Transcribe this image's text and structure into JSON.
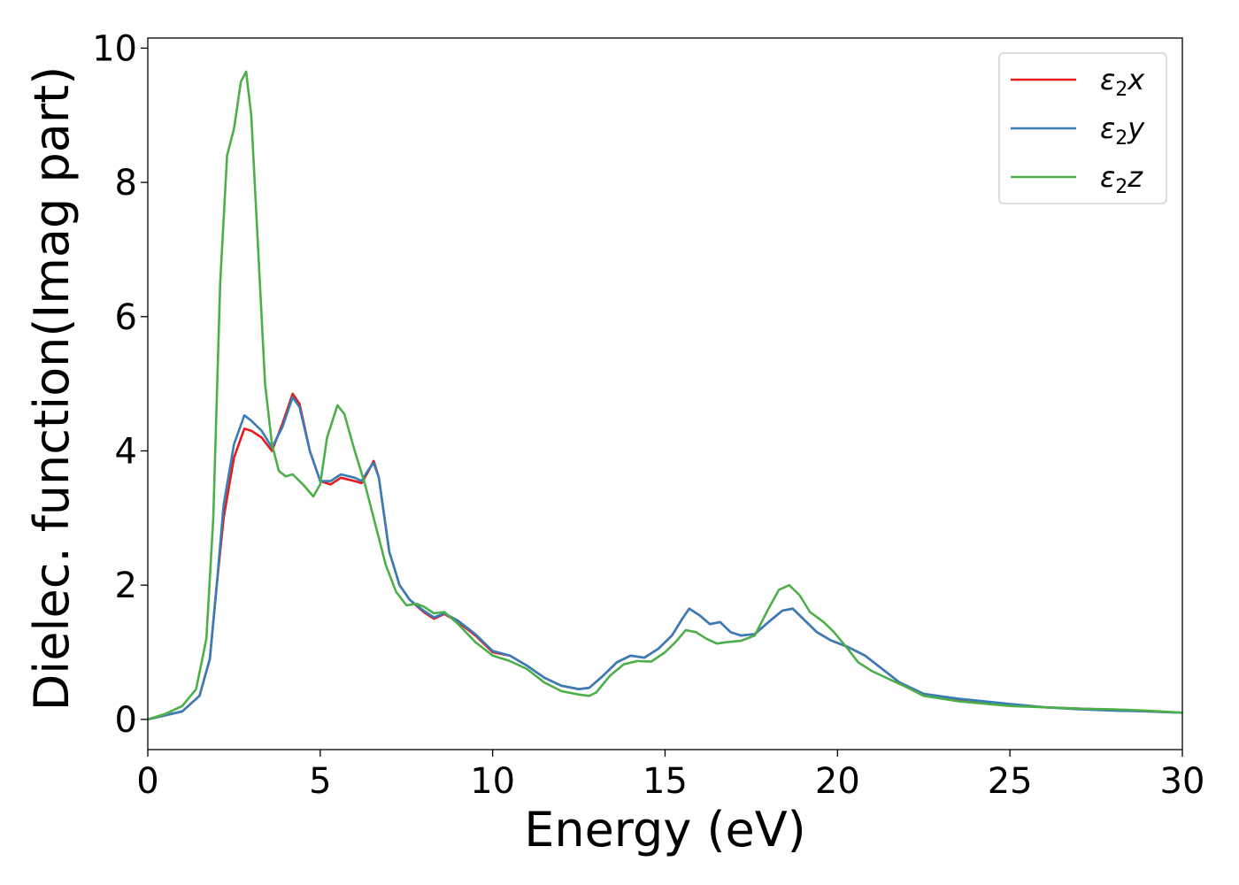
{
  "chart_data": {
    "type": "line",
    "xlabel": "Energy (eV)",
    "ylabel": "Dielec. function(Imag part)",
    "xlim": [
      0,
      30
    ],
    "ylim": [
      -0.45,
      10.15
    ],
    "xticks": [
      "0",
      "5",
      "10",
      "15",
      "20",
      "25",
      "30"
    ],
    "yticks": [
      "0",
      "2",
      "4",
      "6",
      "8",
      "10"
    ],
    "grid": false,
    "legend_position": "top-right",
    "series": [
      {
        "name": "ε₂x",
        "legend": {
          "base": "ε",
          "sub": "2",
          "var": "x"
        },
        "color": "#e41a1c",
        "points": [
          [
            0,
            0
          ],
          [
            0.5,
            0.06
          ],
          [
            1.0,
            0.12
          ],
          [
            1.5,
            0.35
          ],
          [
            1.8,
            0.9
          ],
          [
            2.0,
            2.0
          ],
          [
            2.2,
            3.0
          ],
          [
            2.5,
            3.9
          ],
          [
            2.8,
            4.33
          ],
          [
            3.0,
            4.3
          ],
          [
            3.3,
            4.2
          ],
          [
            3.6,
            4.0
          ],
          [
            3.9,
            4.4
          ],
          [
            4.2,
            4.85
          ],
          [
            4.4,
            4.7
          ],
          [
            4.7,
            4.0
          ],
          [
            5.0,
            3.55
          ],
          [
            5.3,
            3.5
          ],
          [
            5.6,
            3.6
          ],
          [
            6.0,
            3.55
          ],
          [
            6.2,
            3.52
          ],
          [
            6.4,
            3.7
          ],
          [
            6.55,
            3.85
          ],
          [
            6.7,
            3.6
          ],
          [
            7.0,
            2.5
          ],
          [
            7.3,
            2.0
          ],
          [
            7.6,
            1.78
          ],
          [
            8.0,
            1.6
          ],
          [
            8.3,
            1.5
          ],
          [
            8.6,
            1.57
          ],
          [
            9.0,
            1.45
          ],
          [
            9.5,
            1.25
          ],
          [
            10.0,
            1.0
          ],
          [
            10.5,
            0.95
          ],
          [
            11.0,
            0.8
          ],
          [
            11.5,
            0.62
          ],
          [
            12.0,
            0.5
          ],
          [
            12.5,
            0.45
          ],
          [
            12.8,
            0.47
          ],
          [
            13.2,
            0.65
          ],
          [
            13.6,
            0.85
          ],
          [
            14.0,
            0.95
          ],
          [
            14.4,
            0.92
          ],
          [
            14.8,
            1.05
          ],
          [
            15.2,
            1.25
          ],
          [
            15.5,
            1.5
          ],
          [
            15.7,
            1.65
          ],
          [
            16.0,
            1.55
          ],
          [
            16.3,
            1.42
          ],
          [
            16.6,
            1.45
          ],
          [
            16.9,
            1.3
          ],
          [
            17.2,
            1.25
          ],
          [
            17.6,
            1.27
          ],
          [
            18.0,
            1.45
          ],
          [
            18.4,
            1.62
          ],
          [
            18.7,
            1.65
          ],
          [
            19.0,
            1.5
          ],
          [
            19.4,
            1.3
          ],
          [
            19.8,
            1.18
          ],
          [
            20.3,
            1.08
          ],
          [
            20.8,
            0.95
          ],
          [
            21.3,
            0.75
          ],
          [
            21.8,
            0.55
          ],
          [
            22.5,
            0.38
          ],
          [
            23.5,
            0.3
          ],
          [
            25,
            0.22
          ],
          [
            26,
            0.18
          ],
          [
            27,
            0.16
          ],
          [
            28,
            0.14
          ],
          [
            29,
            0.12
          ],
          [
            30,
            0.1
          ]
        ]
      },
      {
        "name": "ε₂y",
        "legend": {
          "base": "ε",
          "sub": "2",
          "var": "y"
        },
        "color": "#377eb8",
        "points": [
          [
            0,
            0
          ],
          [
            0.5,
            0.06
          ],
          [
            1.0,
            0.12
          ],
          [
            1.5,
            0.35
          ],
          [
            1.8,
            0.9
          ],
          [
            2.0,
            2.0
          ],
          [
            2.2,
            3.2
          ],
          [
            2.5,
            4.1
          ],
          [
            2.8,
            4.53
          ],
          [
            3.0,
            4.45
          ],
          [
            3.3,
            4.3
          ],
          [
            3.6,
            4.05
          ],
          [
            3.9,
            4.35
          ],
          [
            4.2,
            4.8
          ],
          [
            4.4,
            4.65
          ],
          [
            4.7,
            4.0
          ],
          [
            5.0,
            3.55
          ],
          [
            5.3,
            3.55
          ],
          [
            5.6,
            3.65
          ],
          [
            6.0,
            3.6
          ],
          [
            6.2,
            3.55
          ],
          [
            6.4,
            3.72
          ],
          [
            6.55,
            3.82
          ],
          [
            6.7,
            3.6
          ],
          [
            7.0,
            2.5
          ],
          [
            7.3,
            2.0
          ],
          [
            7.6,
            1.78
          ],
          [
            8.0,
            1.62
          ],
          [
            8.3,
            1.52
          ],
          [
            8.6,
            1.58
          ],
          [
            9.0,
            1.47
          ],
          [
            9.5,
            1.27
          ],
          [
            10.0,
            1.02
          ],
          [
            10.5,
            0.95
          ],
          [
            11.0,
            0.8
          ],
          [
            11.5,
            0.62
          ],
          [
            12.0,
            0.5
          ],
          [
            12.5,
            0.45
          ],
          [
            12.8,
            0.47
          ],
          [
            13.2,
            0.65
          ],
          [
            13.6,
            0.85
          ],
          [
            14.0,
            0.95
          ],
          [
            14.4,
            0.92
          ],
          [
            14.8,
            1.05
          ],
          [
            15.2,
            1.25
          ],
          [
            15.5,
            1.5
          ],
          [
            15.7,
            1.65
          ],
          [
            16.0,
            1.55
          ],
          [
            16.3,
            1.42
          ],
          [
            16.6,
            1.45
          ],
          [
            16.9,
            1.3
          ],
          [
            17.2,
            1.25
          ],
          [
            17.6,
            1.27
          ],
          [
            18.0,
            1.45
          ],
          [
            18.4,
            1.62
          ],
          [
            18.7,
            1.65
          ],
          [
            19.0,
            1.5
          ],
          [
            19.4,
            1.3
          ],
          [
            19.8,
            1.18
          ],
          [
            20.3,
            1.08
          ],
          [
            20.8,
            0.95
          ],
          [
            21.3,
            0.75
          ],
          [
            21.8,
            0.55
          ],
          [
            22.5,
            0.38
          ],
          [
            23.5,
            0.31
          ],
          [
            25,
            0.23
          ],
          [
            26,
            0.18
          ],
          [
            27,
            0.15
          ],
          [
            28,
            0.13
          ],
          [
            29,
            0.12
          ],
          [
            30,
            0.1
          ]
        ]
      },
      {
        "name": "ε₂z",
        "legend": {
          "base": "ε",
          "sub": "2",
          "var": "z"
        },
        "color": "#4daf4a",
        "points": [
          [
            0,
            0
          ],
          [
            0.5,
            0.08
          ],
          [
            1.0,
            0.2
          ],
          [
            1.4,
            0.45
          ],
          [
            1.7,
            1.2
          ],
          [
            1.9,
            3.0
          ],
          [
            2.1,
            6.5
          ],
          [
            2.3,
            8.4
          ],
          [
            2.5,
            8.8
          ],
          [
            2.7,
            9.5
          ],
          [
            2.85,
            9.65
          ],
          [
            3.0,
            9.0
          ],
          [
            3.2,
            7.0
          ],
          [
            3.4,
            5.0
          ],
          [
            3.6,
            4.1
          ],
          [
            3.8,
            3.7
          ],
          [
            4.0,
            3.62
          ],
          [
            4.2,
            3.65
          ],
          [
            4.5,
            3.5
          ],
          [
            4.8,
            3.32
          ],
          [
            5.0,
            3.5
          ],
          [
            5.2,
            4.2
          ],
          [
            5.5,
            4.68
          ],
          [
            5.7,
            4.55
          ],
          [
            6.0,
            4.0
          ],
          [
            6.3,
            3.5
          ],
          [
            6.6,
            2.9
          ],
          [
            6.9,
            2.3
          ],
          [
            7.2,
            1.9
          ],
          [
            7.5,
            1.7
          ],
          [
            7.8,
            1.72
          ],
          [
            8.0,
            1.68
          ],
          [
            8.3,
            1.58
          ],
          [
            8.6,
            1.6
          ],
          [
            9.0,
            1.42
          ],
          [
            9.5,
            1.15
          ],
          [
            10.0,
            0.95
          ],
          [
            10.5,
            0.87
          ],
          [
            11.0,
            0.75
          ],
          [
            11.5,
            0.55
          ],
          [
            12.0,
            0.42
          ],
          [
            12.5,
            0.37
          ],
          [
            12.8,
            0.35
          ],
          [
            13.0,
            0.4
          ],
          [
            13.4,
            0.65
          ],
          [
            13.8,
            0.82
          ],
          [
            14.2,
            0.87
          ],
          [
            14.6,
            0.86
          ],
          [
            15.0,
            1.0
          ],
          [
            15.3,
            1.15
          ],
          [
            15.6,
            1.33
          ],
          [
            15.9,
            1.3
          ],
          [
            16.2,
            1.2
          ],
          [
            16.5,
            1.13
          ],
          [
            16.8,
            1.15
          ],
          [
            17.2,
            1.17
          ],
          [
            17.6,
            1.25
          ],
          [
            18.0,
            1.65
          ],
          [
            18.3,
            1.93
          ],
          [
            18.6,
            2.0
          ],
          [
            18.9,
            1.85
          ],
          [
            19.2,
            1.6
          ],
          [
            19.6,
            1.45
          ],
          [
            19.9,
            1.3
          ],
          [
            20.3,
            1.05
          ],
          [
            20.6,
            0.85
          ],
          [
            21.0,
            0.72
          ],
          [
            21.5,
            0.6
          ],
          [
            22.0,
            0.48
          ],
          [
            22.5,
            0.35
          ],
          [
            23.5,
            0.27
          ],
          [
            25,
            0.2
          ],
          [
            26,
            0.18
          ],
          [
            27,
            0.16
          ],
          [
            28,
            0.15
          ],
          [
            29,
            0.13
          ],
          [
            30,
            0.1
          ]
        ]
      }
    ]
  }
}
